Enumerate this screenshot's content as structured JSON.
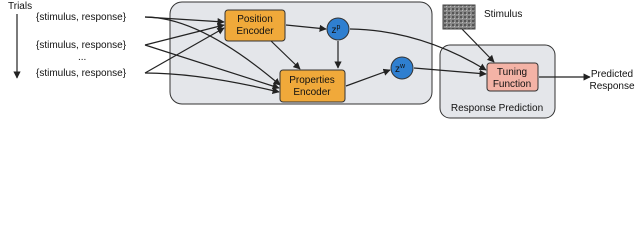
{
  "trials": {
    "label": "Trials",
    "items": [
      "{stimulus, response}",
      "{stimulus, response}",
      "...",
      "{stimulus, response}"
    ]
  },
  "nodes": [
    {
      "label": "Position\nEncoder"
    },
    {
      "label": "z",
      "superscript": "p"
    },
    {
      "label": "Properties\nEncoder"
    },
    {
      "label": "z",
      "superscript": "w"
    },
    {
      "label": "Stimulus"
    },
    {
      "label": "Tuning\nFunction"
    },
    {
      "label": "Response Prediction"
    },
    {
      "label": "Predicted\nResponse"
    }
  ]
}
